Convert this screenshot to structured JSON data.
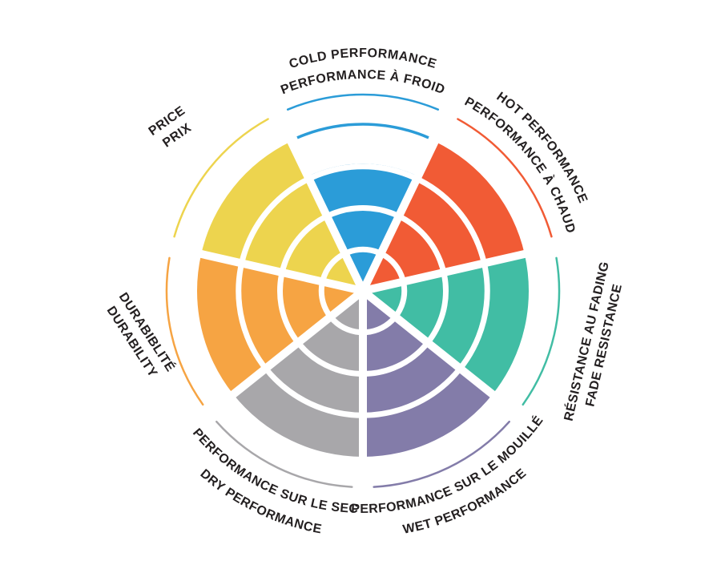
{
  "page": {
    "background": "#FFFFFF"
  },
  "chart_data": {
    "type": "polar-sector-wheel",
    "title": "",
    "grid": true,
    "legend_position": "around-perimeter",
    "scale": {
      "rings": 4,
      "min": 0,
      "max": 4
    },
    "text_color": "#231F20",
    "separator_color": "#FFFFFF",
    "categories": [
      {
        "id": "cold-performance",
        "lines": [
          "COLD PERFORMANCE",
          "PERFORMANCE À FROID"
        ],
        "value": 3,
        "max": 4,
        "color": "#2B9CD8",
        "label_layout": "curved-top"
      },
      {
        "id": "hot-performance",
        "lines": [
          "HOT PERFORMANCE",
          "PERFORMANCE À CHAUD"
        ],
        "value": 4,
        "max": 4,
        "color": "#F15B35",
        "label_layout": "curved-top"
      },
      {
        "id": "fade-resistance",
        "lines": [
          "RÉSISTANCE AU FADING",
          "FADE RESISTANCE"
        ],
        "value": 4,
        "max": 4,
        "color": "#41BDA4",
        "label_layout": "straight-rotated"
      },
      {
        "id": "wet-performance",
        "lines": [
          "PERFORMANCE SUR LE MOUILLÉ",
          "WET PERFORMANCE"
        ],
        "value": 4,
        "max": 4,
        "color": "#837CA9",
        "label_layout": "curved-bottom"
      },
      {
        "id": "dry-performance",
        "lines": [
          "PERFORMANCE SUR LE SEC",
          "DRY PERFORMANCE"
        ],
        "value": 4,
        "max": 4,
        "color": "#A8A7AA",
        "label_layout": "curved-bottom"
      },
      {
        "id": "durability",
        "lines": [
          "DURABIBLITÉ",
          "DURABILITY"
        ],
        "value": 4,
        "max": 4,
        "color": "#F6A443",
        "label_layout": "straight-rotated"
      },
      {
        "id": "price",
        "lines": [
          "PRICE",
          "PRIX"
        ],
        "value": 4,
        "max": 4,
        "color": "#EDD44E",
        "label_layout": "straight-rotated"
      }
    ]
  }
}
